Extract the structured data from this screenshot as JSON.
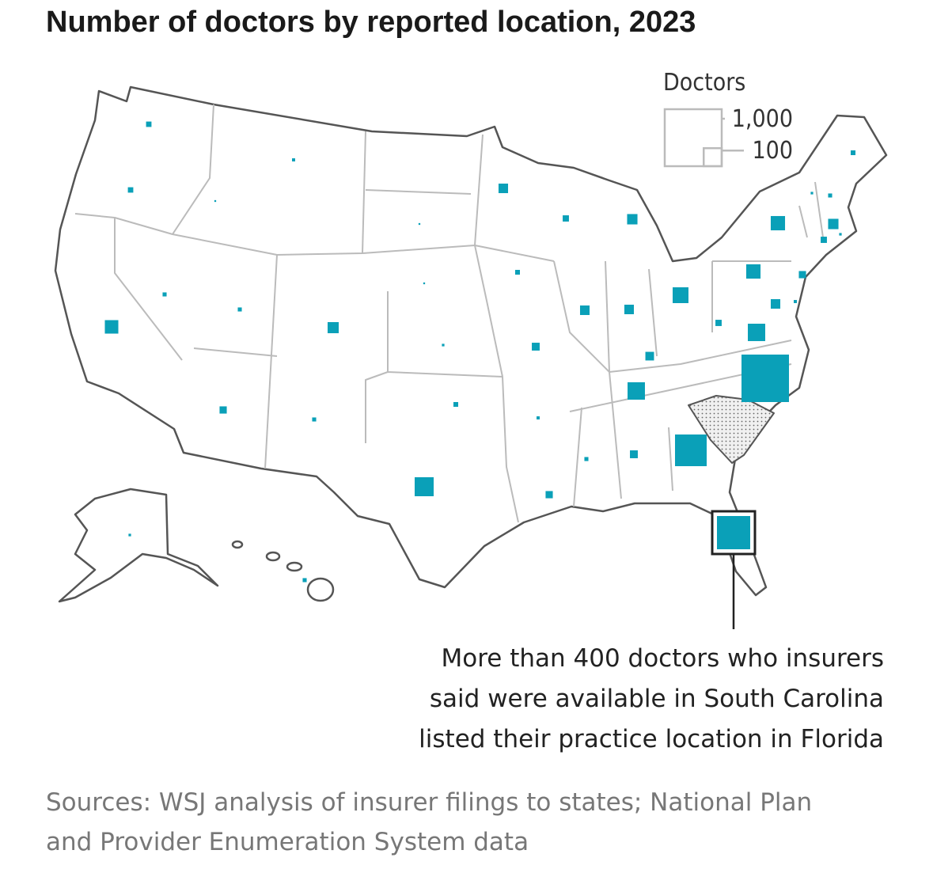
{
  "chart_data": {
    "type": "proportional-square-map",
    "title": "Number of doctors by reported location, 2023",
    "values": [
      9,
      9,
      56,
      5,
      1,
      3,
      5,
      38,
      16,
      5,
      1,
      1,
      2,
      7,
      111,
      28,
      7,
      19,
      3,
      16,
      12,
      28,
      33,
      28,
      77,
      23,
      93,
      5,
      19,
      309,
      340,
      694,
      93,
      12,
      63,
      63,
      28,
      3,
      16,
      12,
      33,
      2,
      2,
      5,
      7,
      2,
      5
    ],
    "color": "#0aa0b8",
    "highlight_color": "#222222",
    "legend": {
      "title": "Doctors",
      "sizes": [
        {
          "value": 1000,
          "label": "1,000"
        },
        100
      ]
    },
    "annotation": [
      "More than 400 doctors who insurers",
      "said were available in South Carolina",
      "listed their practice location in Florida"
    ],
    "source": [
      "Sources: WSJ analysis of insurer filings to states; National Plan",
      "and Provider Enumeration System data"
    ]
  }
}
